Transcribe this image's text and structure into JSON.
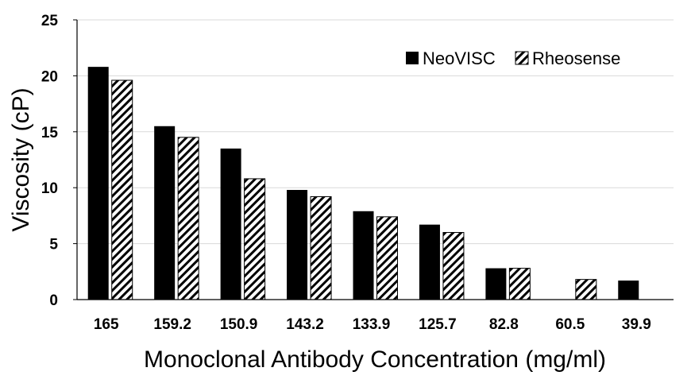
{
  "chart_data": {
    "type": "bar",
    "categories": [
      "165",
      "159.2",
      "150.9",
      "143.2",
      "133.9",
      "125.7",
      "82.8",
      "60.5",
      "39.9"
    ],
    "series": [
      {
        "name": "NeoVISC",
        "values": [
          20.8,
          15.5,
          13.5,
          9.8,
          7.9,
          6.7,
          2.8,
          null,
          1.7
        ],
        "fill": "solid",
        "color": "#000000"
      },
      {
        "name": "Rheosense",
        "values": [
          19.6,
          14.5,
          10.8,
          9.2,
          7.4,
          6.0,
          2.8,
          1.8,
          null
        ],
        "fill": "hatched",
        "color": "#000000"
      }
    ],
    "xlabel": "Monoclonal Antibody Concentration  (mg/ml)",
    "ylabel": "Viscosity (cP)",
    "ylim": [
      0,
      25
    ],
    "yticks": [
      "0",
      "5",
      "10",
      "15",
      "20",
      "25"
    ],
    "grid": true,
    "gridColor": "#d9d9d9",
    "legendPosition": "top-right"
  }
}
